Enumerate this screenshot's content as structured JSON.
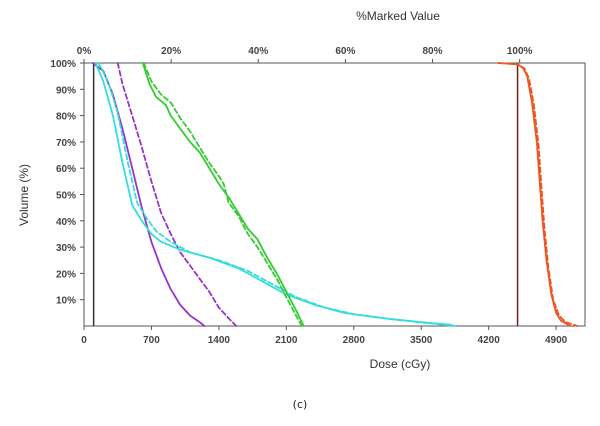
{
  "chart_data": {
    "type": "line",
    "title": "",
    "xlabel": "Dose (cGy)",
    "ylabel": "Volume (%)",
    "x2label": "%Marked Value",
    "caption": "(c)",
    "xlim": [
      0,
      5200
    ],
    "ylim": [
      0,
      100
    ],
    "x_ticks": [
      0,
      700,
      1400,
      2100,
      2800,
      3500,
      4200,
      4900
    ],
    "x_tick_labels": [
      "0",
      "700",
      "1400",
      "2100",
      "2800",
      "3500",
      "4200",
      "4900"
    ],
    "y_ticks": [
      10,
      20,
      30,
      40,
      50,
      60,
      70,
      80,
      90,
      100
    ],
    "y_tick_labels": [
      "10%",
      "20%",
      "30%",
      "40%",
      "50%",
      "60%",
      "70%",
      "80%",
      "90%",
      "100%"
    ],
    "x2_ticks": [
      0,
      20,
      40,
      60,
      80,
      100
    ],
    "x2_tick_labels": [
      "0%",
      "20%",
      "40%",
      "60%",
      "80%",
      "100%"
    ],
    "x2_max": 115,
    "grid": false,
    "vlines": [
      {
        "x": 100,
        "color": "#333333"
      },
      {
        "x": 4500,
        "color": "#7a1a1a"
      }
    ],
    "series": [
      {
        "color": "#9933cc",
        "dash": false,
        "points": [
          [
            90,
            100
          ],
          [
            200,
            97
          ],
          [
            300,
            88
          ],
          [
            400,
            75
          ],
          [
            500,
            60
          ],
          [
            600,
            45
          ],
          [
            700,
            32
          ],
          [
            800,
            22
          ],
          [
            900,
            14
          ],
          [
            1000,
            8
          ],
          [
            1100,
            4
          ],
          [
            1200,
            1.5
          ],
          [
            1250,
            0
          ]
        ]
      },
      {
        "color": "#9933cc",
        "dash": true,
        "points": [
          [
            350,
            100
          ],
          [
            400,
            92
          ],
          [
            500,
            80
          ],
          [
            600,
            68
          ],
          [
            700,
            55
          ],
          [
            800,
            43
          ],
          [
            900,
            35
          ],
          [
            1000,
            28
          ],
          [
            1100,
            23
          ],
          [
            1200,
            18
          ],
          [
            1300,
            13
          ],
          [
            1400,
            7
          ],
          [
            1500,
            3
          ],
          [
            1580,
            0
          ]
        ]
      },
      {
        "color": "#33dddd",
        "dash": false,
        "points": [
          [
            120,
            100
          ],
          [
            200,
            93
          ],
          [
            300,
            80
          ],
          [
            400,
            62
          ],
          [
            500,
            46
          ],
          [
            600,
            40
          ],
          [
            700,
            35
          ],
          [
            800,
            32
          ],
          [
            1000,
            29
          ],
          [
            1300,
            26
          ],
          [
            1600,
            22
          ],
          [
            1900,
            16
          ],
          [
            2100,
            12
          ],
          [
            2400,
            8
          ],
          [
            2700,
            5
          ],
          [
            3100,
            3
          ],
          [
            3500,
            1.5
          ],
          [
            3800,
            0.5
          ],
          [
            3850,
            0
          ]
        ]
      },
      {
        "color": "#33dddd",
        "dash": true,
        "points": [
          [
            150,
            100
          ],
          [
            250,
            93
          ],
          [
            350,
            81
          ],
          [
            450,
            63
          ],
          [
            550,
            47
          ],
          [
            650,
            41
          ],
          [
            750,
            36
          ],
          [
            900,
            32
          ],
          [
            1100,
            28
          ],
          [
            1400,
            25
          ],
          [
            1700,
            21
          ],
          [
            2000,
            15
          ],
          [
            2200,
            11
          ],
          [
            2500,
            7
          ],
          [
            2800,
            4.5
          ],
          [
            3200,
            2.5
          ],
          [
            3600,
            1
          ],
          [
            3850,
            0
          ]
        ]
      },
      {
        "color": "#33cc33",
        "dash": false,
        "points": [
          [
            610,
            100
          ],
          [
            680,
            92
          ],
          [
            750,
            87
          ],
          [
            850,
            84
          ],
          [
            900,
            80
          ],
          [
            1000,
            75
          ],
          [
            1100,
            70
          ],
          [
            1200,
            66
          ],
          [
            1300,
            60
          ],
          [
            1400,
            54
          ],
          [
            1500,
            49
          ],
          [
            1600,
            43
          ],
          [
            1700,
            37
          ],
          [
            1800,
            33
          ],
          [
            1900,
            26
          ],
          [
            2000,
            20
          ],
          [
            2100,
            13
          ],
          [
            2200,
            6
          ],
          [
            2280,
            0
          ]
        ]
      },
      {
        "color": "#33cc33",
        "dash": true,
        "points": [
          [
            620,
            100
          ],
          [
            700,
            93
          ],
          [
            800,
            88
          ],
          [
            900,
            85
          ],
          [
            1000,
            79
          ],
          [
            1100,
            74
          ],
          [
            1200,
            68
          ],
          [
            1300,
            62
          ],
          [
            1400,
            57
          ],
          [
            1450,
            54
          ],
          [
            1500,
            47
          ],
          [
            1600,
            42
          ],
          [
            1700,
            35
          ],
          [
            1800,
            30
          ],
          [
            1900,
            24
          ],
          [
            2000,
            18
          ],
          [
            2100,
            11
          ],
          [
            2200,
            4
          ],
          [
            2260,
            0
          ]
        ]
      },
      {
        "color": "#ee5522",
        "dash": false,
        "points": [
          [
            4300,
            100
          ],
          [
            4500,
            99.5
          ],
          [
            4560,
            98
          ],
          [
            4600,
            95
          ],
          [
            4650,
            85
          ],
          [
            4700,
            70
          ],
          [
            4730,
            55
          ],
          [
            4760,
            40
          ],
          [
            4800,
            25
          ],
          [
            4850,
            12
          ],
          [
            4900,
            5
          ],
          [
            4950,
            2
          ],
          [
            5050,
            0
          ]
        ]
      },
      {
        "color": "#ee5522",
        "dash": true,
        "points": [
          [
            4300,
            100
          ],
          [
            4500,
            99.5
          ],
          [
            4570,
            98
          ],
          [
            4620,
            94
          ],
          [
            4670,
            84
          ],
          [
            4720,
            68
          ],
          [
            4750,
            52
          ],
          [
            4780,
            37
          ],
          [
            4820,
            22
          ],
          [
            4870,
            10
          ],
          [
            4930,
            4
          ],
          [
            5000,
            1.5
          ],
          [
            5120,
            0
          ]
        ]
      }
    ]
  }
}
